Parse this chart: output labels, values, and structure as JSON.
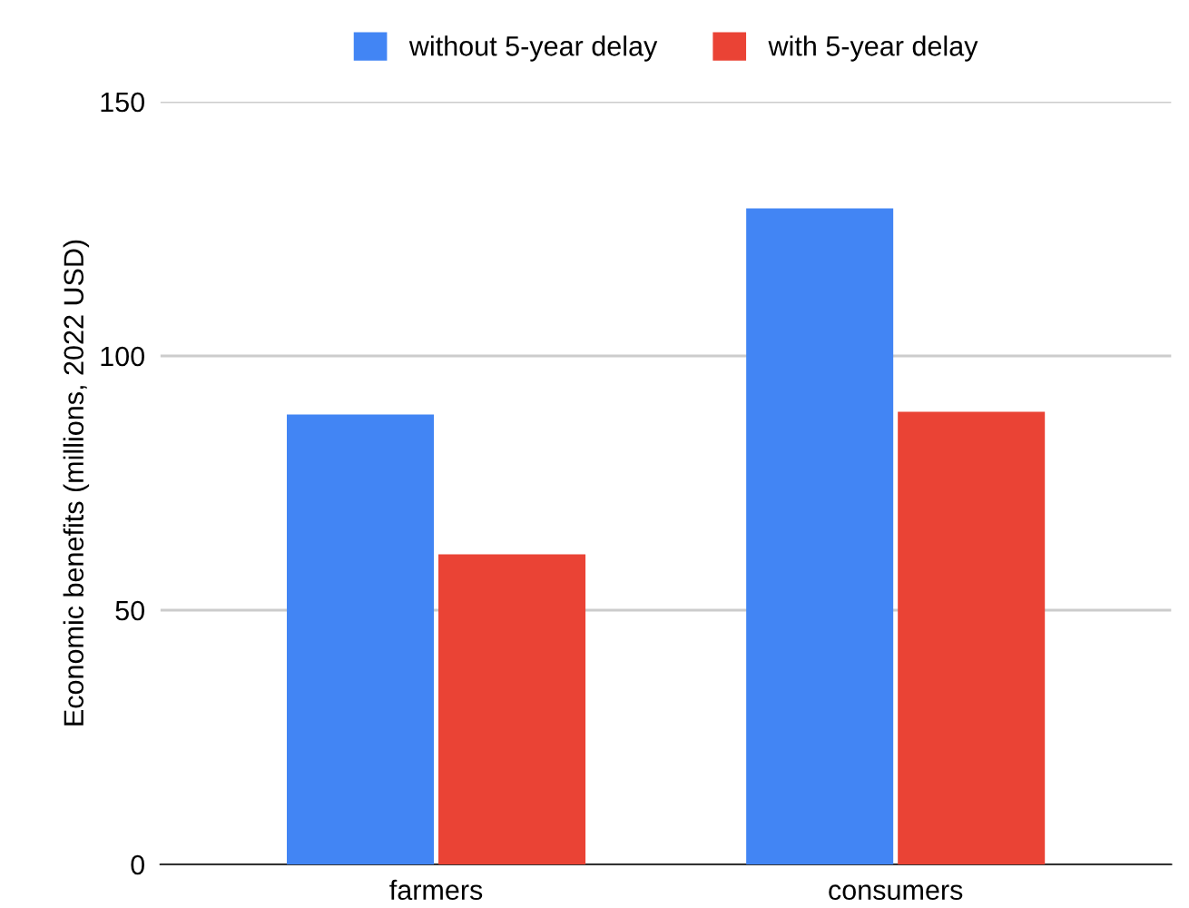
{
  "chart_data": {
    "type": "bar",
    "ylabel": "Economic benefits (millions, 2022 USD)",
    "categories": [
      "farmers",
      "consumers"
    ],
    "series": [
      {
        "name": "without 5-year delay",
        "color": "#4285f4",
        "values": [
          88.5,
          129
        ]
      },
      {
        "name": "with 5-year delay",
        "color": "#ea4335",
        "values": [
          61,
          89
        ]
      }
    ],
    "ylim": [
      0,
      150
    ],
    "yticks": [
      0,
      50,
      100,
      150
    ],
    "grid": "y",
    "legend": "top"
  }
}
